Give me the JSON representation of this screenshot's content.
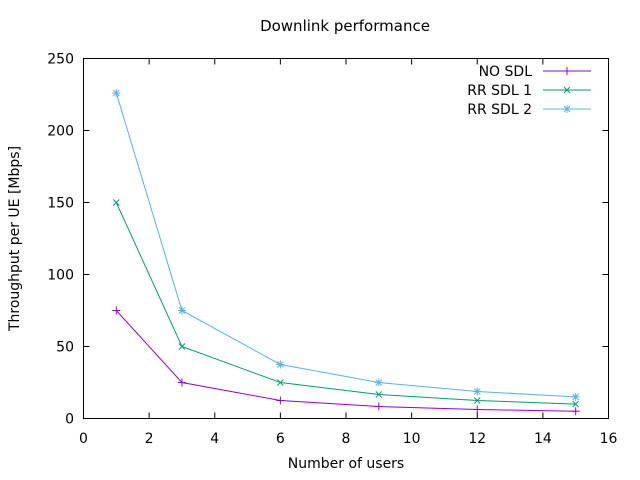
{
  "chart_data": {
    "type": "line",
    "title": "Downlink performance",
    "xlabel": "Number of users",
    "ylabel": "Throughput per UE [Mbps]",
    "xlim": [
      0,
      16
    ],
    "ylim": [
      0,
      250
    ],
    "xticks": [
      0,
      2,
      4,
      6,
      8,
      10,
      12,
      14,
      16
    ],
    "yticks": [
      0,
      50,
      100,
      150,
      200,
      250
    ],
    "grid": false,
    "legend_position": "top-right-inside",
    "border_color": "#000000",
    "x": [
      1,
      3,
      6,
      9,
      12,
      15
    ],
    "series": [
      {
        "name": "NO SDL",
        "color": "#9400d3",
        "marker": "plus",
        "values": [
          75,
          25,
          12.5,
          8.3,
          6.25,
          5
        ]
      },
      {
        "name": "RR SDL 1",
        "color": "#009e73",
        "marker": "cross",
        "values": [
          150,
          50,
          25,
          16.7,
          12.5,
          10
        ]
      },
      {
        "name": "RR SDL 2",
        "color": "#56b4e9",
        "marker": "star",
        "values": [
          226,
          75,
          37.5,
          25,
          18.75,
          15
        ]
      }
    ]
  }
}
